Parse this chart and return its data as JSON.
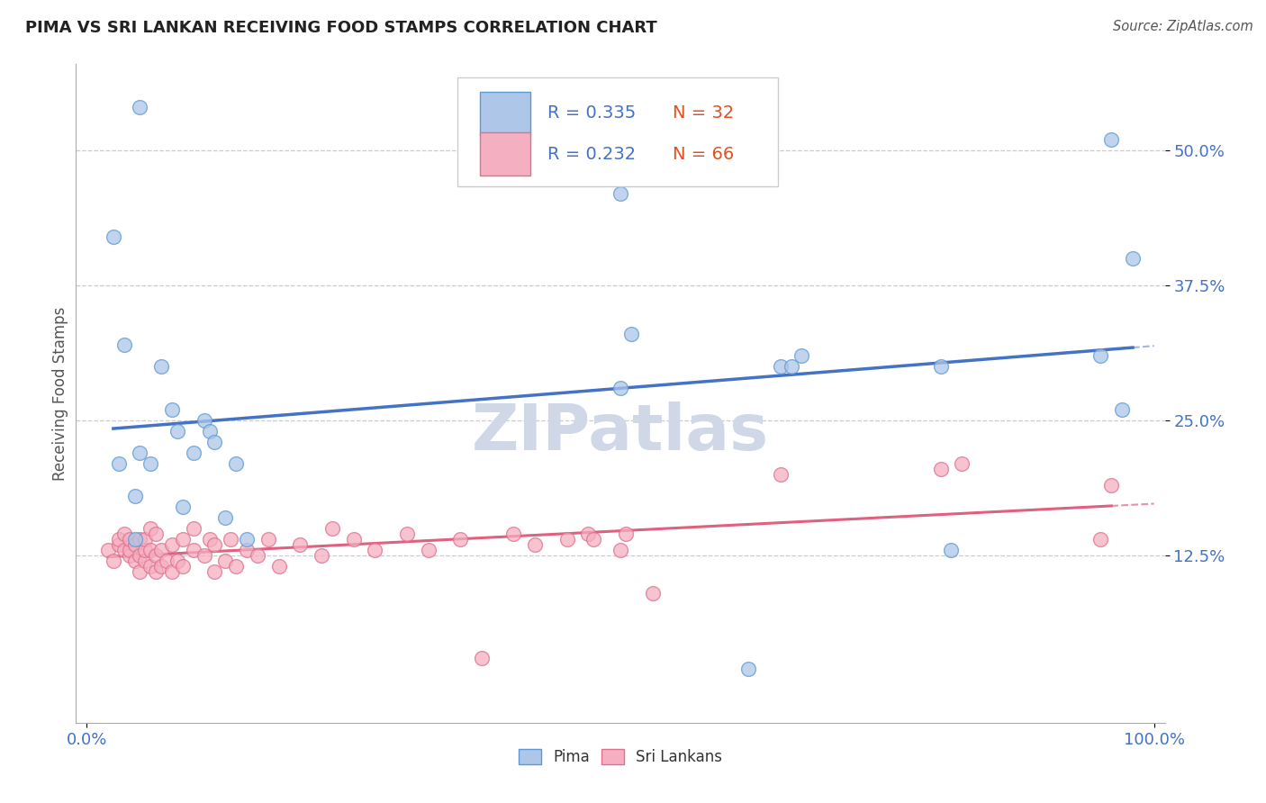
{
  "title": "PIMA VS SRI LANKAN RECEIVING FOOD STAMPS CORRELATION CHART",
  "source": "Source: ZipAtlas.com",
  "ylabel": "Receiving Food Stamps",
  "xlim": [
    -1,
    101
  ],
  "ylim": [
    -3,
    58
  ],
  "ytick_vals": [
    12.5,
    25.0,
    37.5,
    50.0
  ],
  "ytick_labels": [
    "12.5%",
    "25.0%",
    "37.5%",
    "50.0%"
  ],
  "xtick_vals": [
    0,
    100
  ],
  "xtick_labels": [
    "0.0%",
    "100.0%"
  ],
  "pima_R": 0.335,
  "pima_N": 32,
  "sri_R": 0.232,
  "sri_N": 66,
  "pima_color": "#aec6e8",
  "pima_edge_color": "#5b9bd5",
  "pima_line_color": "#4472c4",
  "sri_color": "#f4afc0",
  "sri_edge_color": "#e07090",
  "sri_line_color": "#e06080",
  "legend_R_color": "#4472c4",
  "legend_N_color": "#e05020",
  "grid_color": "#cccccc",
  "title_color": "#222222",
  "source_color": "#555555",
  "tick_color": "#4472c4",
  "ylabel_color": "#555555",
  "watermark_color": "#d0d8e8",
  "pima_points": [
    [
      4.5,
      14.0
    ],
    [
      4.5,
      18.0
    ],
    [
      5.0,
      22.0
    ],
    [
      6.0,
      21.0
    ],
    [
      7.0,
      30.0
    ],
    [
      8.0,
      26.0
    ],
    [
      8.5,
      24.0
    ],
    [
      9.0,
      17.0
    ],
    [
      10.0,
      22.0
    ],
    [
      11.0,
      25.0
    ],
    [
      11.5,
      24.0
    ],
    [
      12.0,
      23.0
    ],
    [
      13.0,
      16.0
    ],
    [
      14.0,
      21.0
    ],
    [
      3.0,
      21.0
    ],
    [
      3.5,
      32.0
    ],
    [
      2.5,
      42.0
    ],
    [
      5.0,
      54.0
    ],
    [
      50.0,
      46.0
    ],
    [
      50.0,
      28.0
    ],
    [
      51.0,
      33.0
    ],
    [
      65.0,
      30.0
    ],
    [
      66.0,
      30.0
    ],
    [
      67.0,
      31.0
    ],
    [
      80.0,
      30.0
    ],
    [
      81.0,
      13.0
    ],
    [
      95.0,
      31.0
    ],
    [
      96.0,
      51.0
    ],
    [
      97.0,
      26.0
    ],
    [
      98.0,
      40.0
    ],
    [
      62.0,
      2.0
    ],
    [
      15.0,
      14.0
    ]
  ],
  "sri_points": [
    [
      2.0,
      13.0
    ],
    [
      2.5,
      12.0
    ],
    [
      3.0,
      13.5
    ],
    [
      3.0,
      14.0
    ],
    [
      3.5,
      13.0
    ],
    [
      3.5,
      14.5
    ],
    [
      4.0,
      12.5
    ],
    [
      4.0,
      13.0
    ],
    [
      4.0,
      14.0
    ],
    [
      4.5,
      12.0
    ],
    [
      4.5,
      13.5
    ],
    [
      5.0,
      11.0
    ],
    [
      5.0,
      12.5
    ],
    [
      5.0,
      14.0
    ],
    [
      5.5,
      12.0
    ],
    [
      5.5,
      13.0
    ],
    [
      5.5,
      14.0
    ],
    [
      6.0,
      11.5
    ],
    [
      6.0,
      13.0
    ],
    [
      6.0,
      15.0
    ],
    [
      6.5,
      11.0
    ],
    [
      6.5,
      12.5
    ],
    [
      6.5,
      14.5
    ],
    [
      7.0,
      11.5
    ],
    [
      7.0,
      13.0
    ],
    [
      7.5,
      12.0
    ],
    [
      8.0,
      11.0
    ],
    [
      8.0,
      13.5
    ],
    [
      8.5,
      12.0
    ],
    [
      9.0,
      11.5
    ],
    [
      9.0,
      14.0
    ],
    [
      10.0,
      13.0
    ],
    [
      10.0,
      15.0
    ],
    [
      11.0,
      12.5
    ],
    [
      11.5,
      14.0
    ],
    [
      12.0,
      11.0
    ],
    [
      12.0,
      13.5
    ],
    [
      13.0,
      12.0
    ],
    [
      13.5,
      14.0
    ],
    [
      14.0,
      11.5
    ],
    [
      15.0,
      13.0
    ],
    [
      16.0,
      12.5
    ],
    [
      17.0,
      14.0
    ],
    [
      18.0,
      11.5
    ],
    [
      20.0,
      13.5
    ],
    [
      22.0,
      12.5
    ],
    [
      23.0,
      15.0
    ],
    [
      25.0,
      14.0
    ],
    [
      27.0,
      13.0
    ],
    [
      30.0,
      14.5
    ],
    [
      32.0,
      13.0
    ],
    [
      35.0,
      14.0
    ],
    [
      37.0,
      3.0
    ],
    [
      40.0,
      14.5
    ],
    [
      42.0,
      13.5
    ],
    [
      45.0,
      14.0
    ],
    [
      47.0,
      14.5
    ],
    [
      47.5,
      14.0
    ],
    [
      50.0,
      13.0
    ],
    [
      50.5,
      14.5
    ],
    [
      53.0,
      9.0
    ],
    [
      65.0,
      20.0
    ],
    [
      80.0,
      20.5
    ],
    [
      82.0,
      21.0
    ],
    [
      95.0,
      14.0
    ],
    [
      96.0,
      19.0
    ]
  ]
}
